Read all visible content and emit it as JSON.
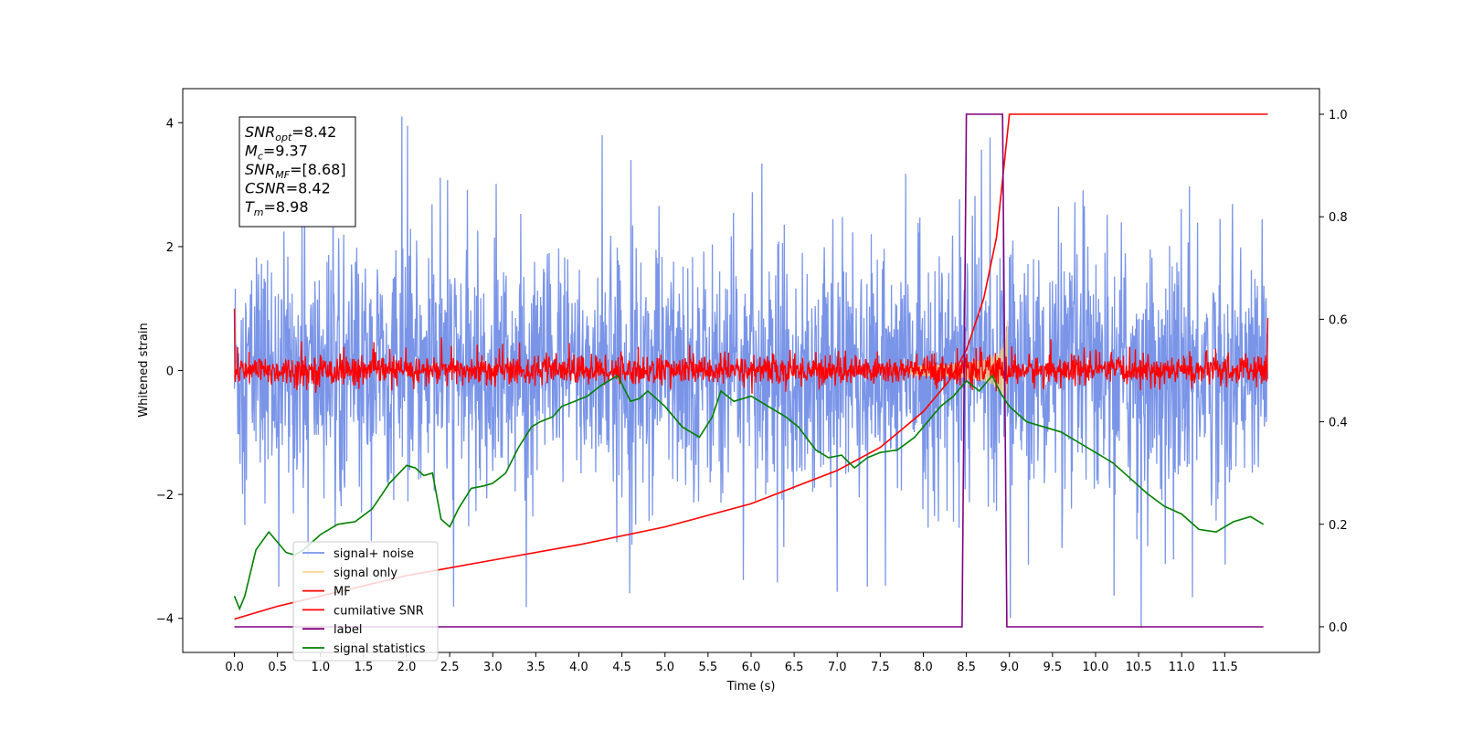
{
  "chart_data": {
    "type": "line",
    "xlabel": "Time (s)",
    "ylabel": "Whitened strain",
    "xlim": [
      -0.6,
      12.6
    ],
    "ylim": [
      -4.55,
      4.55
    ],
    "y2lim": [
      -0.05,
      1.05
    ],
    "xticks": [
      "0.0",
      "0.5",
      "1.0",
      "1.5",
      "2.0",
      "2.5",
      "3.0",
      "3.5",
      "4.0",
      "4.5",
      "5.0",
      "5.5",
      "6.0",
      "6.5",
      "7.0",
      "7.5",
      "8.0",
      "8.5",
      "9.0",
      "9.5",
      "10.0",
      "10.5",
      "11.0",
      "11.5"
    ],
    "yticks": [
      "−4",
      "−2",
      "0",
      "2",
      "4"
    ],
    "y2ticks": [
      "0.0",
      "0.2",
      "0.4",
      "0.6",
      "0.8",
      "1.0"
    ],
    "legend_position": "lower-left",
    "annotation": {
      "lines": [
        {
          "base": "SNR",
          "sub": "opt",
          "value": "=8.42"
        },
        {
          "base": "M",
          "sub": "c",
          "value": "=9.37"
        },
        {
          "base": "SNR",
          "sub": "MF",
          "value": "=[8.68]"
        },
        {
          "base": "CSNR",
          "sub": "",
          "value": "=8.42"
        },
        {
          "base": "T",
          "sub": "m",
          "value": "=8.98"
        }
      ]
    },
    "series": [
      {
        "name": "signal+ noise",
        "color": "#7a95e8",
        "axis": "left",
        "amplitude": 1.0,
        "range": [
          0,
          12
        ]
      },
      {
        "name": "signal only",
        "color": "#f5c97a",
        "axis": "left",
        "chirp_start": 7.8,
        "chirp_end": 8.98,
        "peak": 0.9
      },
      {
        "name": "MF",
        "color": "#ff0000",
        "axis": "left",
        "amplitude": 0.12,
        "range": [
          0,
          12
        ]
      },
      {
        "name": "cumilative SNR",
        "color": "#ff0000",
        "axis": "right",
        "x": [
          0.0,
          0.5,
          1.0,
          2.0,
          3.0,
          4.0,
          5.0,
          6.0,
          7.0,
          7.5,
          8.0,
          8.3,
          8.5,
          8.7,
          8.85,
          8.95,
          9.0,
          12.0
        ],
        "values": [
          0.015,
          0.04,
          0.06,
          0.1,
          0.13,
          0.16,
          0.195,
          0.24,
          0.305,
          0.35,
          0.42,
          0.48,
          0.54,
          0.64,
          0.76,
          0.92,
          1.0,
          1.0
        ]
      },
      {
        "name": "label",
        "color": "#800080",
        "axis": "right",
        "x": [
          0.0,
          8.45,
          8.5,
          8.92,
          8.97,
          11.95
        ],
        "values": [
          0.0,
          0.0,
          1.0,
          1.0,
          0.0,
          0.0
        ]
      },
      {
        "name": "signal statistics",
        "color": "#008000",
        "axis": "right",
        "x": [
          0.0,
          0.06,
          0.12,
          0.25,
          0.4,
          0.5,
          0.6,
          0.7,
          0.8,
          1.0,
          1.2,
          1.4,
          1.6,
          1.8,
          2.0,
          2.1,
          2.2,
          2.3,
          2.4,
          2.5,
          2.6,
          2.75,
          2.9,
          3.0,
          3.15,
          3.3,
          3.45,
          3.55,
          3.7,
          3.8,
          3.95,
          4.1,
          4.25,
          4.45,
          4.6,
          4.7,
          4.8,
          5.0,
          5.2,
          5.4,
          5.55,
          5.65,
          5.8,
          6.0,
          6.2,
          6.4,
          6.55,
          6.75,
          6.9,
          7.05,
          7.2,
          7.35,
          7.5,
          7.7,
          7.9,
          8.05,
          8.2,
          8.35,
          8.5,
          8.65,
          8.8,
          8.9,
          9.0,
          9.2,
          9.4,
          9.6,
          9.8,
          10.0,
          10.2,
          10.4,
          10.6,
          10.8,
          11.0,
          11.2,
          11.4,
          11.6,
          11.8,
          11.95
        ],
        "values": [
          0.06,
          0.035,
          0.06,
          0.15,
          0.185,
          0.165,
          0.145,
          0.14,
          0.15,
          0.18,
          0.2,
          0.205,
          0.23,
          0.28,
          0.315,
          0.31,
          0.295,
          0.3,
          0.21,
          0.195,
          0.23,
          0.27,
          0.275,
          0.28,
          0.3,
          0.35,
          0.39,
          0.4,
          0.41,
          0.43,
          0.44,
          0.45,
          0.47,
          0.49,
          0.44,
          0.445,
          0.46,
          0.43,
          0.39,
          0.37,
          0.41,
          0.46,
          0.44,
          0.45,
          0.43,
          0.41,
          0.39,
          0.345,
          0.33,
          0.335,
          0.31,
          0.33,
          0.34,
          0.345,
          0.37,
          0.4,
          0.43,
          0.45,
          0.48,
          0.46,
          0.49,
          0.455,
          0.43,
          0.4,
          0.39,
          0.38,
          0.36,
          0.34,
          0.32,
          0.29,
          0.26,
          0.235,
          0.22,
          0.19,
          0.185,
          0.205,
          0.215,
          0.2
        ]
      }
    ]
  }
}
